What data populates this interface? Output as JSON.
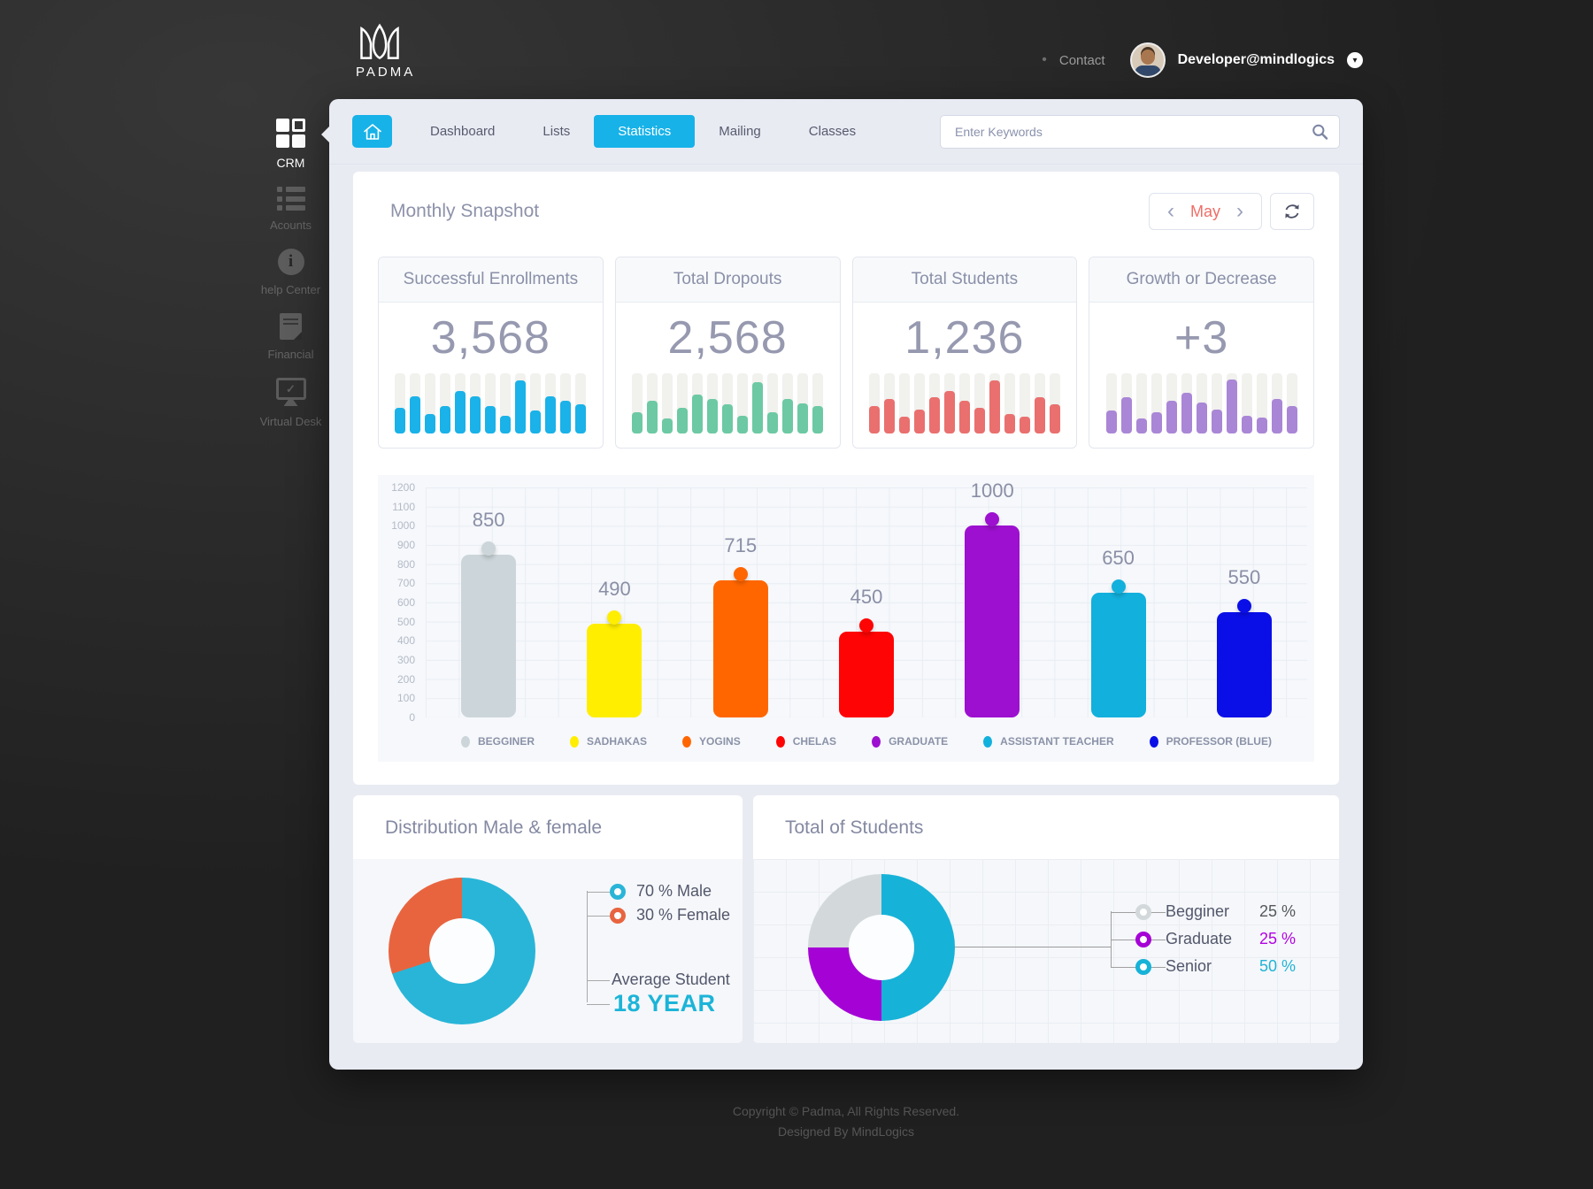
{
  "brand": {
    "name": "PADMA"
  },
  "header": {
    "bullet": "•",
    "contact_label": "Contact",
    "user_email": "Developer@mindlogics",
    "caret": "▾"
  },
  "sidebar": {
    "items": [
      {
        "label": "CRM",
        "icon": "grid-icon",
        "active": true
      },
      {
        "label": "Acounts",
        "icon": "list-icon",
        "active": false
      },
      {
        "label": "help Center",
        "icon": "info-icon",
        "active": false
      },
      {
        "label": "Financial",
        "icon": "document-icon",
        "active": false
      },
      {
        "label": "Virtual Desk",
        "icon": "desktop-check-icon",
        "active": false
      }
    ]
  },
  "nav": {
    "tabs": [
      {
        "label": "Dashboard",
        "active": false
      },
      {
        "label": "Lists",
        "active": false
      },
      {
        "label": "Statistics",
        "active": true
      },
      {
        "label": "Mailing",
        "active": false
      },
      {
        "label": "Classes",
        "active": false
      }
    ],
    "search_placeholder": "Enter Keywords"
  },
  "snapshot": {
    "title": "Monthly Snapshot",
    "month": "May",
    "prev_arrow": "‹",
    "next_arrow": "›"
  },
  "colors": {
    "accent_cyan": "#17b2e8",
    "month_red": "#ee6e67",
    "panel_bg": "#e9ebf3",
    "number_gray": "#9699af"
  },
  "chart_data": [
    {
      "type": "bar",
      "subtype": "sparkline",
      "title": "Successful Enrollments",
      "value": "3,568",
      "color": "#1ab2e8",
      "track_color": "#f1f1ee",
      "values_pct": [
        42,
        62,
        32,
        45,
        70,
        62,
        45,
        30,
        88,
        38,
        62,
        55,
        48
      ]
    },
    {
      "type": "bar",
      "subtype": "sparkline",
      "title": "Total Dropouts",
      "value": "2,568",
      "color": "#6cc9a3",
      "track_color": "#f1f1ee",
      "values_pct": [
        35,
        55,
        25,
        42,
        65,
        58,
        48,
        30,
        85,
        35,
        58,
        50,
        45
      ]
    },
    {
      "type": "bar",
      "subtype": "sparkline",
      "title": "Total Students",
      "value": "1,236",
      "color": "#e9706e",
      "track_color": "#f1f1ee",
      "values_pct": [
        45,
        58,
        28,
        40,
        60,
        70,
        55,
        42,
        88,
        32,
        28,
        60,
        48
      ]
    },
    {
      "type": "bar",
      "subtype": "sparkline",
      "title": "Growth or Decrease",
      "value": "+3",
      "color": "#a986d6",
      "track_color": "#f1f1ee",
      "values_pct": [
        38,
        60,
        25,
        35,
        55,
        68,
        52,
        40,
        90,
        30,
        26,
        58,
        45
      ]
    },
    {
      "type": "bar",
      "title": "Student categories",
      "categories": [
        "BEGGINER",
        "SADHAKAS",
        "YOGINS",
        "CHELAS",
        "GRADUATE",
        "ASSISTANT TEACHER",
        "PROFESSOR (BLUE)"
      ],
      "values": [
        850,
        490,
        715,
        450,
        1000,
        650,
        550
      ],
      "colors": [
        "#ccd6da",
        "#ffee00",
        "#ff6600",
        "#fe0404",
        "#9d10d0",
        "#12b0dd",
        "#0a0fe8"
      ],
      "xlabel": "",
      "ylabel": "",
      "ylim": [
        0,
        1200
      ],
      "yticks": [
        "1200",
        "1100",
        "1000",
        "900",
        "800",
        "700",
        "600",
        "500",
        "400",
        "300",
        "200",
        "100",
        "0"
      ],
      "grid": true,
      "legend_position": "bottom"
    },
    {
      "type": "pie",
      "title": "Distribution Male & female",
      "slices": [
        {
          "name": "Male",
          "label": "70 % Male",
          "value": 70,
          "from": 0,
          "to": 70,
          "color": "#29b5d8"
        },
        {
          "name": "Female",
          "label": "30 % Female",
          "value": 30,
          "from": 70,
          "to": 100,
          "color": "#e8643f"
        }
      ],
      "note_label": "Average Student",
      "note_value": "18 YEAR",
      "note_color": "#1cb4d8"
    },
    {
      "type": "pie",
      "title": "Total of Students",
      "slices": [
        {
          "name": "Begginer",
          "label": "Begginer",
          "pct_label": "25 %",
          "value": 25,
          "from": 75,
          "to": 100,
          "color": "#d3d9db",
          "value_color": "#54585d"
        },
        {
          "name": "Graduate",
          "label": "Graduate",
          "pct_label": "25 %",
          "value": 25,
          "from": 50,
          "to": 75,
          "color": "#a503d6",
          "value_color": "#b203e2"
        },
        {
          "name": "Senior",
          "label": "Senior",
          "pct_label": "50 %",
          "value": 50,
          "from": 0,
          "to": 50,
          "color": "#17b2d8",
          "value_color": "#22b3d6"
        }
      ],
      "legend_position": "right"
    }
  ],
  "footer": {
    "line1": "Copyright © Padma, All Rights Reserved.",
    "line2": "Designed By MindLogics"
  }
}
